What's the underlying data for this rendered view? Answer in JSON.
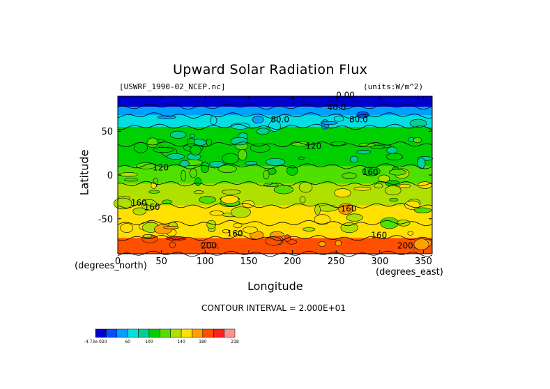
{
  "chart_data": {
    "type": "heatmap",
    "title": "Upward Solar Radiation Flux",
    "file_label": "[USWRF_1990-02_NCEP.nc]",
    "units_label": "(units:W/m^2)",
    "xlabel": "Longitude",
    "ylabel": "Latitude",
    "x_unit_label": "(degrees_east)",
    "y_unit_label": "(degrees_north)",
    "xlim": [
      0,
      360
    ],
    "ylim": [
      -90,
      90
    ],
    "x_ticks": [
      0,
      50,
      100,
      150,
      200,
      250,
      300,
      350
    ],
    "y_ticks": [
      50,
      0,
      -50
    ],
    "contour_interval_text": "CONTOUR INTERVAL = 2.000E+01",
    "contour_labels": [
      "0.00",
      "40.0",
      "80.0",
      "80.0",
      "120",
      "120",
      "160",
      "160",
      "160",
      "160",
      "160",
      "160",
      "200.",
      "200."
    ],
    "colorbar": {
      "colors": [
        "#0000cc",
        "#0050ff",
        "#00a0ff",
        "#00e0e0",
        "#00d090",
        "#00d000",
        "#50e000",
        "#b0e000",
        "#ffe000",
        "#ffa000",
        "#ff5000",
        "#ff2020",
        "#ff9090"
      ],
      "tick_labels": [
        "-4.73e-020",
        "60",
        "100",
        "140",
        "180",
        "218"
      ]
    },
    "bands": [
      {
        "lat": [
          78,
          90
        ],
        "value": 10
      },
      {
        "lat": [
          68,
          78
        ],
        "value": 40
      },
      {
        "lat": [
          55,
          68
        ],
        "value": 70
      },
      {
        "lat": [
          35,
          55
        ],
        "value": 100
      },
      {
        "lat": [
          10,
          35
        ],
        "value": 110
      },
      {
        "lat": [
          -10,
          10
        ],
        "value": 130
      },
      {
        "lat": [
          -35,
          -10
        ],
        "value": 150
      },
      {
        "lat": [
          -55,
          -35
        ],
        "value": 160
      },
      {
        "lat": [
          -72,
          -55
        ],
        "value": 170
      },
      {
        "lat": [
          -90,
          -72
        ],
        "value": 210
      }
    ]
  }
}
